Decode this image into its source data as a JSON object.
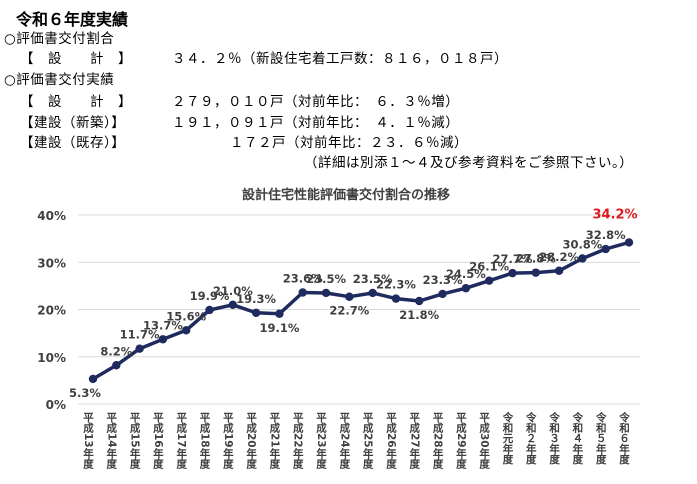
{
  "summary": {
    "heading": "令和６年度実績",
    "rate_section": "○評価書交付割合",
    "rate_label": "【　設　　計　】",
    "rate_value": "３４．２％（新設住宅着工戸数：８１６，０１８戸）",
    "results_section": "○評価書交付実績",
    "rows": [
      {
        "label": "【　設　　計　】",
        "value": "２７９，０１０戸（対前年比：　６．３％増）"
      },
      {
        "label": "【建設（新築）】",
        "value": "１９１，０９１戸（対前年比：　４．１％減）"
      },
      {
        "label": "【建設（既存）】",
        "value": "１７２戸（対前年比：２３．６％減）"
      }
    ],
    "note": "（詳細は別添１～４及び参考資料をご参照下さい。）"
  },
  "colors": {
    "line": "#1f2a5e",
    "grid": "#d9d9d9",
    "highlight": "#e0191f",
    "text": "#404040"
  },
  "chart_data": {
    "type": "line",
    "title": "設計住宅性能評価書交付割合の推移",
    "categories": [
      "平成13年度",
      "平成14年度",
      "平成15年度",
      "平成16年度",
      "平成17年度",
      "平成18年度",
      "平成19年度",
      "平成20年度",
      "平成21年度",
      "平成22年度",
      "平成23年度",
      "平成24年度",
      "平成25年度",
      "平成26年度",
      "平成27年度",
      "平成28年度",
      "平成29年度",
      "平成30年度",
      "令和元年度",
      "令和２年度",
      "令和３年度",
      "令和４年度",
      "令和５年度",
      "令和６年度"
    ],
    "values": [
      5.3,
      8.2,
      11.7,
      13.7,
      15.6,
      19.9,
      21.0,
      19.3,
      19.1,
      23.6,
      23.5,
      22.7,
      23.5,
      22.3,
      21.8,
      23.3,
      24.5,
      26.1,
      27.7,
      27.8,
      28.2,
      30.8,
      32.8,
      34.2
    ],
    "labels": [
      "5.3%",
      "8.2%",
      "11.7%",
      "13.7%",
      "15.6%",
      "19.9%",
      "21.0%",
      "19.3%",
      "19.1%",
      "23.6%",
      "23.5%",
      "22.7%",
      "23.5%",
      "22.3%",
      "21.8%",
      "23.3%",
      "24.5%",
      "26.1%",
      "27.7%",
      "27.8%",
      "28.2%",
      "30.8%",
      "32.8%",
      "34.2%"
    ],
    "yticks": [
      "0%",
      "10%",
      "20%",
      "30%",
      "40%"
    ],
    "ylim": [
      0,
      40
    ],
    "grid": true,
    "legend": "none",
    "highlight_last": true
  }
}
